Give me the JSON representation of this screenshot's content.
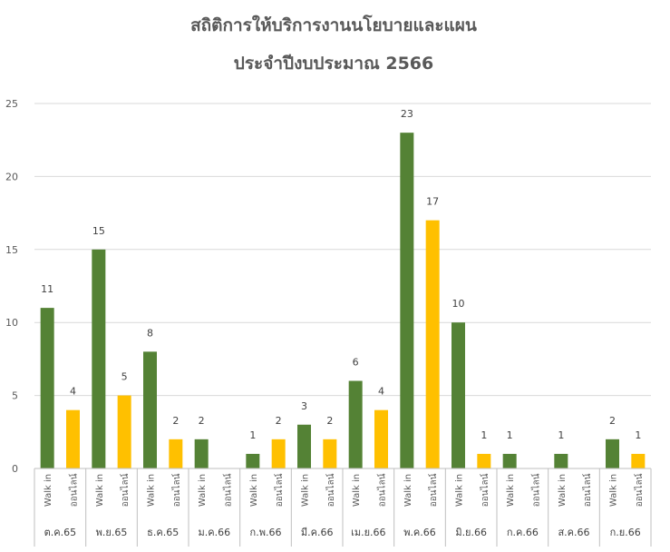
{
  "chart_data": {
    "type": "bar",
    "title_line1": "สถิติการให้บริการงานนโยบายและแผน",
    "title_line2": "ประจำปีงบประมาณ 2566",
    "xlabel": "",
    "ylabel": "",
    "ylim": [
      0,
      25
    ],
    "yticks": [
      0,
      5,
      10,
      15,
      20,
      25
    ],
    "grid": true,
    "legend": "none",
    "groups": [
      "ต.ค.65",
      "พ.ย.65",
      "ธ.ค.65",
      "ม.ค.66",
      "ก.พ.66",
      "มี.ค.66",
      "เม.ย.66",
      "พ.ค.66",
      "มิ.ย.66",
      "ก.ค.66",
      "ส.ค.66",
      "ก.ย.66"
    ],
    "sub_categories": [
      "Walk in",
      "ออนไลน์"
    ],
    "series": [
      {
        "color": "#548235",
        "values": [
          11,
          15,
          8,
          2,
          1,
          3,
          6,
          23,
          10,
          1,
          1,
          2
        ]
      },
      {
        "color": "#ffc000",
        "values": [
          4,
          5,
          2,
          null,
          2,
          2,
          4,
          17,
          1,
          null,
          null,
          1
        ]
      }
    ]
  }
}
